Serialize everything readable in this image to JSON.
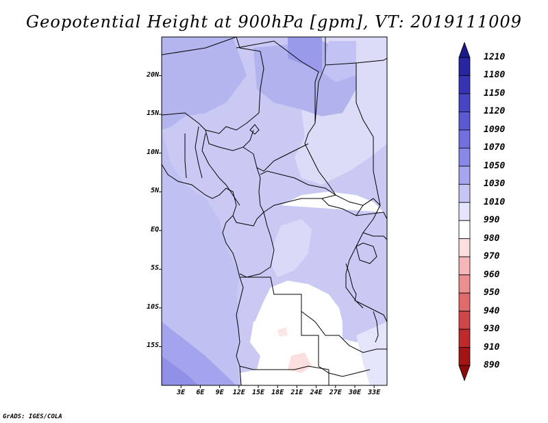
{
  "title": "Geopotential Height at 900hPa [gpm], VT: 2019111009",
  "credit": "GrADS: IGES/COLA",
  "map": {
    "lon_range": [
      0,
      35
    ],
    "lat_range": [
      -20,
      25
    ],
    "lat_labels": [
      "20N",
      "15N",
      "10N",
      "5N",
      "EQ",
      "5S",
      "10S",
      "15S"
    ],
    "lat_values": [
      20,
      15,
      10,
      5,
      0,
      -5,
      -10,
      -15
    ],
    "lon_labels": [
      "3E",
      "6E",
      "9E",
      "12E",
      "15E",
      "18E",
      "21E",
      "24E",
      "27E",
      "30E",
      "33E"
    ],
    "lon_values": [
      3,
      6,
      9,
      12,
      15,
      18,
      21,
      24,
      27,
      30,
      33
    ]
  },
  "colorbar": {
    "labels": [
      "1210",
      "1180",
      "1150",
      "1120",
      "1090",
      "1070",
      "1050",
      "1030",
      "1010",
      "990",
      "980",
      "970",
      "960",
      "950",
      "940",
      "930",
      "910",
      "890"
    ],
    "colors": [
      "#1a1a8a",
      "#2626a0",
      "#3434b4",
      "#4646c4",
      "#5a5ad2",
      "#7070de",
      "#8888e8",
      "#a6a6f0",
      "#c6c6f6",
      "#e4e4fb",
      "#ffffff",
      "#fbdede",
      "#f4b6b6",
      "#ea9090",
      "#de6a6a",
      "#d04646",
      "#be2a2a",
      "#a41414",
      "#8c0a0a"
    ]
  }
}
